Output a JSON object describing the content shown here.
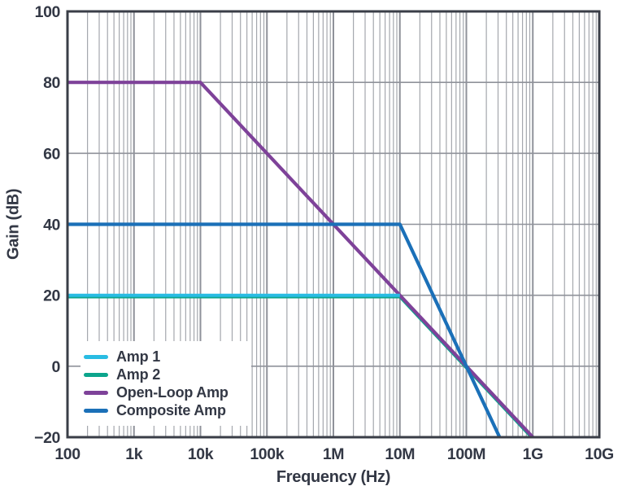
{
  "figure": {
    "x_axis_title": "Frequency (Hz)",
    "y_axis_title": "Gain (dB)"
  },
  "chart_data": {
    "type": "line",
    "title": "",
    "xlabel": "Frequency (Hz)",
    "ylabel": "Gain (dB)",
    "x_scale": "log10",
    "xlim": [
      100,
      10000000000
    ],
    "ylim": [
      -20,
      100
    ],
    "grid": {
      "vertical": "major each decade plus log minors 2-9",
      "horizontal": "major every 20 dB",
      "minor_color": "#A4A7AD",
      "major_color": "#8F929A"
    },
    "frame_color": "#3A3E47",
    "text_color": "#333845",
    "x_ticks": [
      {
        "value": 100,
        "label": "100"
      },
      {
        "value": 1000,
        "label": "1k"
      },
      {
        "value": 10000,
        "label": "10k"
      },
      {
        "value": 100000,
        "label": "100k"
      },
      {
        "value": 1000000,
        "label": "1M"
      },
      {
        "value": 10000000,
        "label": "10M"
      },
      {
        "value": 100000000,
        "label": "100M"
      },
      {
        "value": 1000000000,
        "label": "1G"
      },
      {
        "value": 10000000000,
        "label": "10G"
      }
    ],
    "y_ticks": [
      {
        "value": 100,
        "label": "100"
      },
      {
        "value": 80,
        "label": "80"
      },
      {
        "value": 60,
        "label": "60"
      },
      {
        "value": 40,
        "label": "40"
      },
      {
        "value": 20,
        "label": "20"
      },
      {
        "value": 0,
        "label": "0"
      },
      {
        "value": -20,
        "label": "−20"
      }
    ],
    "legend_position": "inside bottom-left",
    "series": [
      {
        "name": "Amp 1",
        "color": "#29BCE3",
        "points": [
          [
            100,
            20
          ],
          [
            10000000,
            20
          ]
        ]
      },
      {
        "name": "Amp 2",
        "color": "#0CA58C",
        "points": [
          [
            100,
            20
          ],
          [
            10000000,
            20
          ],
          [
            1000000000,
            -20
          ]
        ]
      },
      {
        "name": "Open-Loop Amp",
        "color": "#7E4299",
        "points": [
          [
            100,
            80
          ],
          [
            10000,
            80
          ],
          [
            1000000000,
            -20
          ]
        ]
      },
      {
        "name": "Composite Amp",
        "color": "#1B70B8",
        "points": [
          [
            100,
            40
          ],
          [
            10000000,
            40
          ],
          [
            316227766,
            -20
          ]
        ]
      }
    ]
  }
}
